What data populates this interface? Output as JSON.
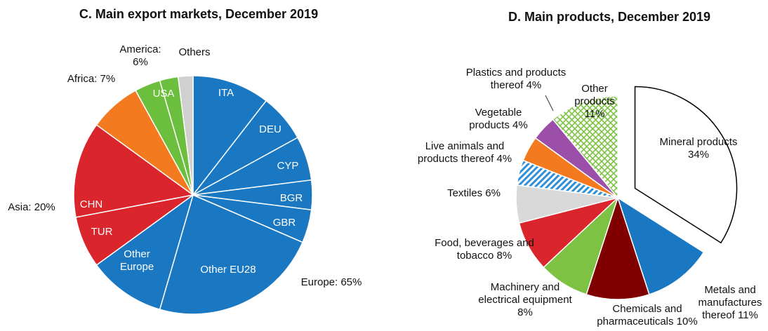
{
  "chart_data": [
    {
      "type": "pie",
      "title": "C. Main export markets, December 2019",
      "categories": [
        "ITA",
        "DEU",
        "CYP",
        "BGR",
        "GBR",
        "Other EU28",
        "Other Europe",
        "TUR",
        "CHN",
        "Africa: 7%",
        "USA",
        null,
        "Others"
      ],
      "values": [
        10.5,
        6.5,
        6,
        4,
        4.5,
        23,
        10.5,
        7,
        13,
        7,
        3.5,
        2.5,
        2
      ],
      "colors": [
        "#1a78c2",
        "#1a78c2",
        "#1a78c2",
        "#1a78c2",
        "#1a78c2",
        "#1a78c2",
        "#1a78c2",
        "#d9252b",
        "#d9252b",
        "#f47a20",
        "#6cbf3c",
        "#6cbf3c",
        "#d0d0d0"
      ],
      "groups": [
        "Europe: 65%",
        "Asia: 20%",
        "America: 6%"
      ]
    },
    {
      "type": "pie",
      "title": "D. Main products, December 2019",
      "categories": [
        "Mineral products 34%",
        "Metals and manufactures thereof 11%",
        "Chemicals and pharmaceuticals 10%",
        "Machinery and electrical equipment 8%",
        "Food, beverages and tobacco 8%",
        "Textiles 6%",
        "Live animals and products thereof 4%",
        "Vegetable products 4%",
        "Plastics and products thereof 4%",
        "Other products 11%"
      ],
      "values": [
        34,
        11,
        10,
        8,
        8,
        6,
        4,
        4,
        4,
        11
      ],
      "colors": [
        "#ffffff",
        "#1a78c2",
        "#800000",
        "#7dc242",
        "#d9252b",
        "#d9d9d9",
        "#2f8fd8",
        "#f47a20",
        "#9b4fa8",
        "#7dc242"
      ],
      "hatched": [
        false,
        false,
        false,
        false,
        false,
        false,
        true,
        false,
        false,
        true
      ],
      "exploded": [
        true,
        false,
        false,
        false,
        false,
        false,
        false,
        false,
        false,
        false
      ]
    }
  ]
}
